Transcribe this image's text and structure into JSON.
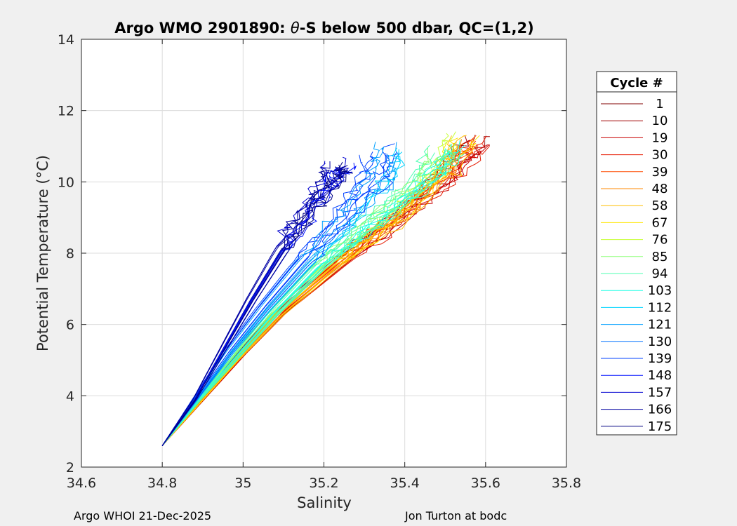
{
  "chart_data": {
    "type": "line",
    "title_prefix": "Argo WMO 2901890: ",
    "title_theta": "θ",
    "title_suffix": "-S below 500 dbar,  QC=(1,2)",
    "xlabel": "Salinity",
    "ylabel": "Potential Temperature (°C)",
    "xlim": [
      34.6,
      35.8
    ],
    "ylim": [
      2,
      14
    ],
    "xticks": [
      "34.6",
      "34.8",
      "35",
      "35.2",
      "35.4",
      "35.6",
      "35.8"
    ],
    "yticks": [
      "2",
      "4",
      "6",
      "8",
      "10",
      "12",
      "14"
    ],
    "grid": true,
    "legend": {
      "title": "Cycle #",
      "placement": "right",
      "entries": [
        {
          "label": "1",
          "color": "#800000"
        },
        {
          "label": "10",
          "color": "#a00000"
        },
        {
          "label": "19",
          "color": "#c80000"
        },
        {
          "label": "30",
          "color": "#e61a00"
        },
        {
          "label": "39",
          "color": "#ff4a00"
        },
        {
          "label": "48",
          "color": "#ff8a00"
        },
        {
          "label": "58",
          "color": "#ffbe00"
        },
        {
          "label": "67",
          "color": "#ffe600"
        },
        {
          "label": "76",
          "color": "#c8ff37"
        },
        {
          "label": "85",
          "color": "#8aff75"
        },
        {
          "label": "94",
          "color": "#4dffb2"
        },
        {
          "label": "103",
          "color": "#1affe6"
        },
        {
          "label": "112",
          "color": "#00d4ff"
        },
        {
          "label": "121",
          "color": "#00a0ff"
        },
        {
          "label": "130",
          "color": "#0070ff"
        },
        {
          "label": "139",
          "color": "#0040ff"
        },
        {
          "label": "148",
          "color": "#0010ff"
        },
        {
          "label": "157",
          "color": "#0000d0"
        },
        {
          "label": "166",
          "color": "#0000a0"
        },
        {
          "label": "175",
          "color": "#000080"
        }
      ]
    },
    "series_envelope": [
      {
        "group": "1-30",
        "color_index": 2,
        "points": [
          [
            34.8,
            2.6
          ],
          [
            34.9,
            3.9
          ],
          [
            35.0,
            5.2
          ],
          [
            35.1,
            6.4
          ],
          [
            35.25,
            7.8
          ],
          [
            35.4,
            9.1
          ],
          [
            35.52,
            10.3
          ],
          [
            35.6,
            11.2
          ]
        ],
        "spread": 0.04
      },
      {
        "group": "39-67",
        "color_index": 6,
        "points": [
          [
            34.8,
            2.6
          ],
          [
            34.89,
            3.8
          ],
          [
            34.98,
            5.0
          ],
          [
            35.08,
            6.2
          ],
          [
            35.22,
            7.6
          ],
          [
            35.38,
            9.0
          ],
          [
            35.5,
            10.3
          ],
          [
            35.55,
            11.3
          ]
        ],
        "spread": 0.04
      },
      {
        "group": "76-103",
        "color_index": 10,
        "points": [
          [
            34.8,
            2.6
          ],
          [
            34.89,
            3.9
          ],
          [
            34.98,
            5.1
          ],
          [
            35.07,
            6.3
          ],
          [
            35.18,
            7.6
          ],
          [
            35.32,
            8.9
          ],
          [
            35.45,
            10.1
          ],
          [
            35.5,
            11.0
          ]
        ],
        "spread": 0.05
      },
      {
        "group": "112-139",
        "color_index": 13,
        "points": [
          [
            34.8,
            2.6
          ],
          [
            34.88,
            3.9
          ],
          [
            34.96,
            5.2
          ],
          [
            35.05,
            6.5
          ],
          [
            35.14,
            7.7
          ],
          [
            35.25,
            9.0
          ],
          [
            35.33,
            10.2
          ],
          [
            35.35,
            11.0
          ]
        ],
        "spread": 0.05
      },
      {
        "group": "148-175",
        "color_index": 17,
        "points": [
          [
            34.8,
            2.6
          ],
          [
            34.88,
            3.9
          ],
          [
            34.95,
            5.3
          ],
          [
            35.02,
            6.7
          ],
          [
            35.09,
            8.0
          ],
          [
            35.16,
            9.2
          ],
          [
            35.22,
            10.1
          ],
          [
            35.24,
            10.5
          ]
        ],
        "spread": 0.04
      }
    ]
  },
  "footer": {
    "left": "Argo WHOI 21-Dec-2025",
    "right": "Jon Turton at bodc"
  }
}
